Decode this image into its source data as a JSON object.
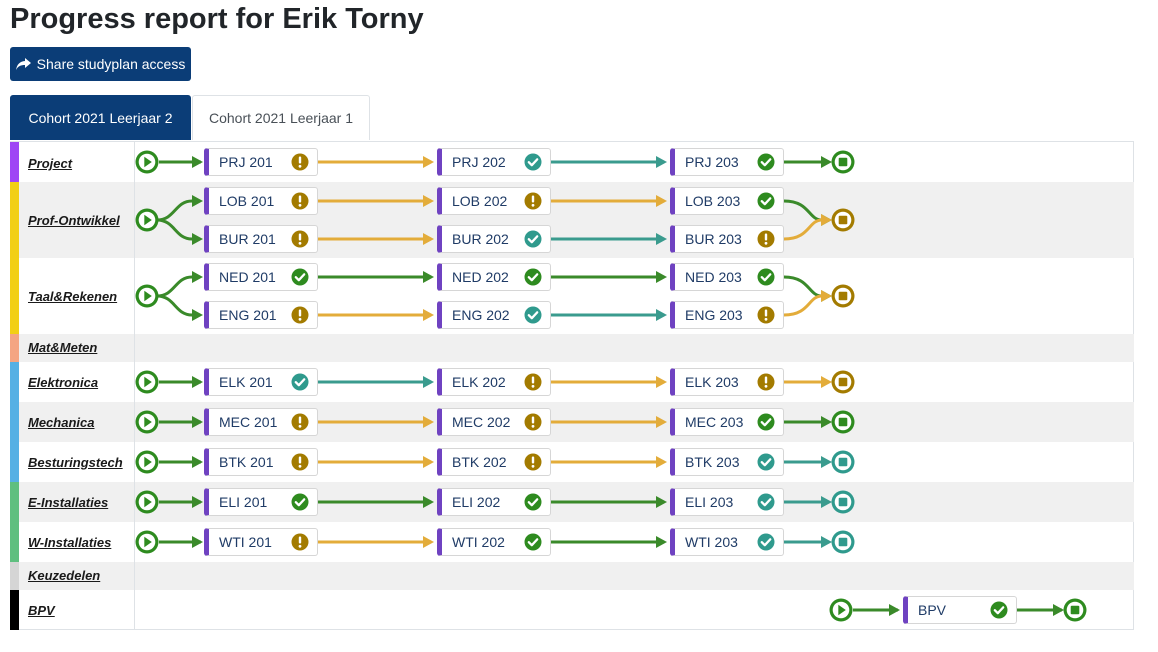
{
  "page": {
    "title": "Progress report for Erik Torny"
  },
  "share_button": {
    "label": "Share studyplan access"
  },
  "tabs": [
    {
      "label": "Cohort 2021 Leerjaar 2",
      "active": true
    },
    {
      "label": "Cohort 2021 Leerjaar 1",
      "active": false
    }
  ],
  "colors": {
    "brand": "#0b3d77",
    "done": "#2e8b1f",
    "warning": "#a37b00",
    "completed_teal": "#2f9a8d",
    "arrow_green": "#3a8a2a",
    "arrow_orange": "#e3ac3a",
    "arrow_teal": "#3a9b8e"
  },
  "icons": {
    "share": "share-arrow-icon",
    "start": "play-circle-icon",
    "end": "stop-circle-icon",
    "status_check": "check-circle-icon",
    "status_warning": "exclamation-circle-icon"
  },
  "rows": [
    {
      "label": "Project",
      "color": "#9f45f5",
      "lines": [
        {
          "items": [
            {
              "name": "PRJ 201",
              "status": "warning"
            },
            {
              "name": "PRJ 202",
              "status": "completed"
            },
            {
              "name": "PRJ 203",
              "status": "done"
            }
          ],
          "end": "done"
        }
      ]
    },
    {
      "label": "Prof-Ontwikkel",
      "color": "#f2cf15",
      "lines": [
        {
          "items": [
            {
              "name": "LOB 201",
              "status": "warning"
            },
            {
              "name": "LOB 202",
              "status": "warning"
            },
            {
              "name": "LOB 203",
              "status": "done"
            }
          ]
        },
        {
          "items": [
            {
              "name": "BUR 201",
              "status": "warning"
            },
            {
              "name": "BUR 202",
              "status": "completed"
            },
            {
              "name": "BUR 203",
              "status": "warning"
            }
          ]
        }
      ],
      "end": "warning"
    },
    {
      "label": "Taal&Rekenen",
      "color": "#f2cf15",
      "lines": [
        {
          "items": [
            {
              "name": "NED 201",
              "status": "done"
            },
            {
              "name": "NED 202",
              "status": "done"
            },
            {
              "name": "NED 203",
              "status": "done"
            }
          ]
        },
        {
          "items": [
            {
              "name": "ENG 201",
              "status": "warning"
            },
            {
              "name": "ENG 202",
              "status": "completed"
            },
            {
              "name": "ENG 203",
              "status": "warning"
            }
          ]
        }
      ],
      "end": "warning"
    },
    {
      "label": "Mat&Meten",
      "color": "#f4a582",
      "lines": []
    },
    {
      "label": "Elektronica",
      "color": "#56b0e4",
      "lines": [
        {
          "items": [
            {
              "name": "ELK 201",
              "status": "completed"
            },
            {
              "name": "ELK 202",
              "status": "warning"
            },
            {
              "name": "ELK 203",
              "status": "warning"
            }
          ],
          "end": "warning"
        }
      ]
    },
    {
      "label": "Mechanica",
      "color": "#56b0e4",
      "lines": [
        {
          "items": [
            {
              "name": "MEC 201",
              "status": "warning"
            },
            {
              "name": "MEC 202",
              "status": "warning"
            },
            {
              "name": "MEC 203",
              "status": "done"
            }
          ],
          "end": "done"
        }
      ]
    },
    {
      "label": "Besturingstech",
      "color": "#56b0e4",
      "lines": [
        {
          "items": [
            {
              "name": "BTK 201",
              "status": "warning"
            },
            {
              "name": "BTK 202",
              "status": "warning"
            },
            {
              "name": "BTK 203",
              "status": "completed"
            }
          ],
          "end": "completed"
        }
      ]
    },
    {
      "label": "E-Installaties",
      "color": "#5fbf7f",
      "lines": [
        {
          "items": [
            {
              "name": "ELI 201",
              "status": "done"
            },
            {
              "name": "ELI 202",
              "status": "done"
            },
            {
              "name": "ELI 203",
              "status": "completed"
            }
          ],
          "end": "completed"
        }
      ]
    },
    {
      "label": "W-Installaties",
      "color": "#5fbf7f",
      "lines": [
        {
          "items": [
            {
              "name": "WTI 201",
              "status": "warning"
            },
            {
              "name": "WTI 202",
              "status": "done"
            },
            {
              "name": "WTI 203",
              "status": "completed"
            }
          ],
          "end": "completed"
        }
      ]
    },
    {
      "label": "Keuzedelen",
      "color": "#d5d5d5",
      "lines": []
    },
    {
      "label": "BPV",
      "color": "#000000",
      "lines": [
        {
          "items": [
            {
              "name": "BPV",
              "status": "done"
            }
          ],
          "end": "done"
        }
      ]
    }
  ]
}
